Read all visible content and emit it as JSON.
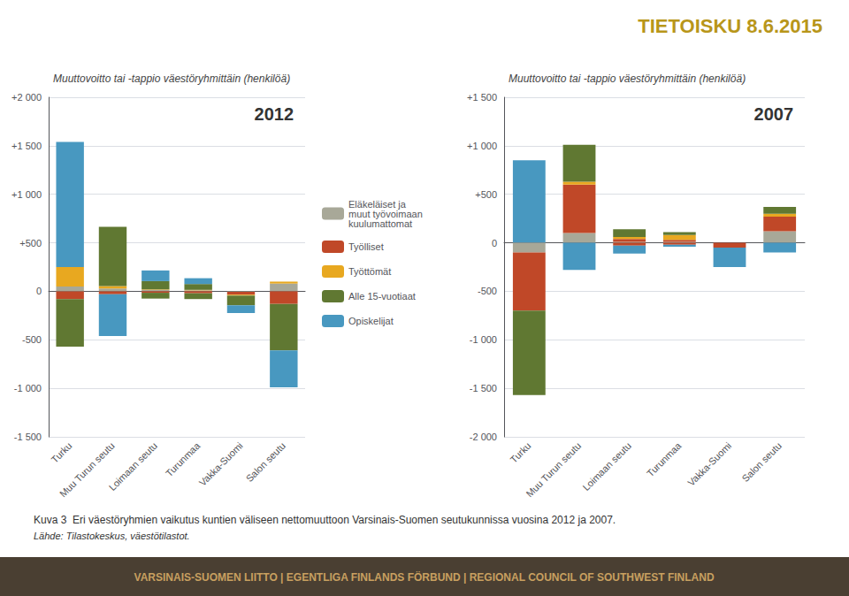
{
  "chart_data": [
    {
      "type": "bar",
      "stacked": true,
      "grid": true,
      "legend": "right",
      "title": "Muuttovoitto tai -tappio väestöryhmittäin (henkilöä)",
      "annotations": [
        "2012"
      ],
      "categories": [
        "Turku",
        "Muu Turun seutu",
        "Loimaan seutu",
        "Turunmaa",
        "Vakka-Suomi",
        "Salon seutu"
      ],
      "ylim": [
        -1500,
        2000
      ],
      "yticks": [
        {
          "value": -1500,
          "label": "-1 500"
        },
        {
          "value": -1000,
          "label": "-1 000"
        },
        -500,
        0,
        {
          "value": 500,
          "label": "+500"
        },
        {
          "value": 1000,
          "label": "+1 000"
        },
        {
          "value": 1500,
          "label": "+1 500"
        },
        {
          "value": 2000,
          "label": "+2 000"
        }
      ],
      "series": [
        {
          "name": "Eläkeläiset ja\nmuut työvoimaan\nkuulumattomat",
          "color": "#a8a898",
          "values": [
            50,
            30,
            15,
            10,
            0,
            80
          ]
        },
        {
          "name": "Työlliset",
          "color": "#c04828",
          "values": [
            0,
            0,
            0,
            0,
            0,
            0
          ]
        },
        {
          "name": "Työttömät",
          "color": "#e8a820",
          "values": [
            200,
            25,
            5,
            5,
            0,
            20
          ]
        },
        {
          "name": "Alle 15-vuotiaat",
          "color": "#607832",
          "values": [
            0,
            610,
            85,
            60,
            0,
            0
          ]
        },
        {
          "name": "Opiskelijat",
          "color": "#4898c0",
          "values": [
            1290,
            0,
            110,
            60,
            0,
            0
          ]
        },
        {
          "name": "Eläkeläiset ja\nmuut työvoimaan\nkuulumattomat",
          "color": "#a8a898",
          "values": [
            0,
            0,
            0,
            0,
            -5,
            0
          ]
        },
        {
          "name": "Työlliset",
          "color": "#c04828",
          "values": [
            -80,
            -30,
            -15,
            -20,
            -30,
            -130
          ]
        },
        {
          "name": "Työttömät",
          "color": "#e8a820",
          "values": [
            0,
            0,
            0,
            0,
            -10,
            0
          ]
        },
        {
          "name": "Alle 15-vuotiaat",
          "color": "#607832",
          "values": [
            -490,
            0,
            -60,
            -60,
            -100,
            -480
          ]
        },
        {
          "name": "Opiskelijat",
          "color": "#4898c0",
          "values": [
            0,
            -430,
            0,
            0,
            -80,
            -380
          ]
        }
      ]
    },
    {
      "type": "bar",
      "stacked": true,
      "grid": true,
      "title": "Muuttovoitto tai -tappio väestöryhmittäin (henkilöä)",
      "annotations": [
        "2007"
      ],
      "categories": [
        "Turku",
        "Muu Turun seutu",
        "Loimaan seutu",
        "Turunmaa",
        "Vakka-Suomi",
        "Salon seutu"
      ],
      "ylim": [
        -2000,
        1500
      ],
      "yticks": [
        {
          "value": -2000,
          "label": "-2 000"
        },
        {
          "value": -1500,
          "label": "-1 500"
        },
        {
          "value": -1000,
          "label": "-1 000"
        },
        -500,
        0,
        {
          "value": 500,
          "label": "+500"
        },
        {
          "value": 1000,
          "label": "+1 000"
        },
        {
          "value": 1500,
          "label": "+1 500"
        }
      ],
      "series": [
        {
          "name": "Eläkeläiset ja\nmuut työvoimaan\nkuulumattomat",
          "color": "#a8a898",
          "values": [
            0,
            100,
            10,
            10,
            0,
            120
          ]
        },
        {
          "name": "Työlliset",
          "color": "#c04828",
          "values": [
            0,
            500,
            30,
            20,
            0,
            150
          ]
        },
        {
          "name": "Työttömät",
          "color": "#e8a820",
          "values": [
            0,
            30,
            20,
            50,
            0,
            30
          ]
        },
        {
          "name": "Alle 15-vuotiaat",
          "color": "#607832",
          "values": [
            0,
            380,
            80,
            30,
            0,
            70
          ]
        },
        {
          "name": "Opiskelijat",
          "color": "#4898c0",
          "values": [
            850,
            0,
            0,
            0,
            0,
            0
          ]
        },
        {
          "name": "Eläkeläiset ja\nmuut työvoimaan\nkuulumattomat",
          "color": "#a8a898",
          "values": [
            -100,
            0,
            0,
            0,
            0,
            0
          ]
        },
        {
          "name": "Työlliset",
          "color": "#c04828",
          "values": [
            -600,
            0,
            -30,
            -20,
            -50,
            0
          ]
        },
        {
          "name": "Työttömät",
          "color": "#e8a820",
          "values": [
            0,
            0,
            0,
            0,
            0,
            0
          ]
        },
        {
          "name": "Alle 15-vuotiaat",
          "color": "#607832",
          "values": [
            -870,
            0,
            0,
            0,
            0,
            0
          ]
        },
        {
          "name": "Opiskelijat",
          "color": "#4898c0",
          "values": [
            0,
            -280,
            -80,
            -20,
            -200,
            -100
          ]
        }
      ]
    }
  ],
  "annotations": [
    "TIETOISKU 8.6.2015",
    "Kuva 3  Eri väestöryhmien vaikutus kuntien väliseen nettomuuttoon Varsinais-Suomen seutukunnissa vuosina 2012 ja 2007.",
    "Lähde: Tilastokeskus, väestötilastot.",
    "VARSINAIS-SUOMEN LIITTO | EGENTLIGA FINLANDS FÖRBUND | REGIONAL COUNCIL OF SOUTHWEST FINLAND"
  ]
}
